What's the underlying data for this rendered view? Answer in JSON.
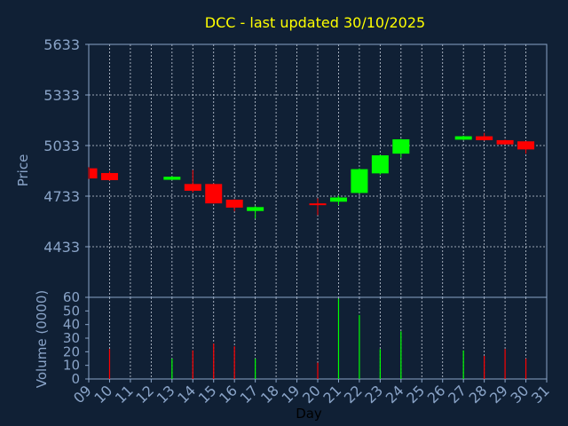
{
  "chart_data": [
    {
      "type": "candlestick",
      "title": "DCC - last updated 30/10/2025",
      "ylabel": "Price",
      "ylim": [
        4133,
        5633
      ],
      "yticks": [
        "5633",
        "5333",
        "5033",
        "4733",
        "4433"
      ],
      "xlim": [
        9,
        31
      ],
      "grid": true,
      "up_color": "#00ff00",
      "down_color": "#ff0000",
      "candles": [
        {
          "day": 9,
          "open": 4898,
          "close": 4838,
          "high": 4905,
          "low": 4835
        },
        {
          "day": 10,
          "open": 4870,
          "close": 4828,
          "high": 4880,
          "low": 4825
        },
        {
          "day": 13,
          "open": 4830,
          "close": 4848,
          "high": 4852,
          "low": 4828
        },
        {
          "day": 14,
          "open": 4805,
          "close": 4765,
          "high": 4888,
          "low": 4755
        },
        {
          "day": 15,
          "open": 4805,
          "close": 4690,
          "high": 4808,
          "low": 4688
        },
        {
          "day": 16,
          "open": 4712,
          "close": 4665,
          "high": 4715,
          "low": 4643
        },
        {
          "day": 17,
          "open": 4645,
          "close": 4668,
          "high": 4675,
          "low": 4600
        },
        {
          "day": 20,
          "open": 4690,
          "close": 4680,
          "high": 4720,
          "low": 4620
        },
        {
          "day": 21,
          "open": 4700,
          "close": 4725,
          "high": 4735,
          "low": 4680
        },
        {
          "day": 22,
          "open": 4752,
          "close": 4893,
          "high": 4898,
          "low": 4748
        },
        {
          "day": 23,
          "open": 4868,
          "close": 4975,
          "high": 4978,
          "low": 4860
        },
        {
          "day": 24,
          "open": 4985,
          "close": 5070,
          "high": 5072,
          "low": 4960
        },
        {
          "day": 27,
          "open": 5068,
          "close": 5088,
          "high": 5092,
          "low": 5065
        },
        {
          "day": 28,
          "open": 5088,
          "close": 5065,
          "high": 5108,
          "low": 5062
        },
        {
          "day": 29,
          "open": 5065,
          "close": 5040,
          "high": 5068,
          "low": 5038
        },
        {
          "day": 30,
          "open": 5058,
          "close": 5010,
          "high": 5060,
          "low": 4985
        }
      ]
    },
    {
      "type": "bar",
      "ylabel": "Volume (0000)",
      "xlabel": "Day",
      "ylim": [
        0,
        60
      ],
      "yticks": [
        "60",
        "50",
        "40",
        "30",
        "20",
        "10",
        "0"
      ],
      "xticks": [
        "09",
        "10",
        "11",
        "12",
        "13",
        "14",
        "15",
        "16",
        "17",
        "18",
        "19",
        "20",
        "21",
        "22",
        "23",
        "24",
        "25",
        "26",
        "27",
        "28",
        "29",
        "30",
        "31"
      ],
      "bars": [
        {
          "day": 9,
          "value": 0,
          "color": "#ff0000"
        },
        {
          "day": 10,
          "value": 22,
          "color": "#ff0000"
        },
        {
          "day": 13,
          "value": 15,
          "color": "#00ff00"
        },
        {
          "day": 14,
          "value": 21,
          "color": "#ff0000"
        },
        {
          "day": 15,
          "value": 26,
          "color": "#ff0000"
        },
        {
          "day": 16,
          "value": 24,
          "color": "#ff0000"
        },
        {
          "day": 17,
          "value": 15,
          "color": "#00ff00"
        },
        {
          "day": 20,
          "value": 12,
          "color": "#ff0000"
        },
        {
          "day": 21,
          "value": 59,
          "color": "#00ff00"
        },
        {
          "day": 22,
          "value": 47,
          "color": "#00ff00"
        },
        {
          "day": 23,
          "value": 22,
          "color": "#00ff00"
        },
        {
          "day": 24,
          "value": 35,
          "color": "#00ff00"
        },
        {
          "day": 27,
          "value": 21,
          "color": "#00ff00"
        },
        {
          "day": 28,
          "value": 17,
          "color": "#ff0000"
        },
        {
          "day": 29,
          "value": 22,
          "color": "#ff0000"
        },
        {
          "day": 30,
          "value": 15,
          "color": "#ff0000"
        }
      ]
    }
  ]
}
